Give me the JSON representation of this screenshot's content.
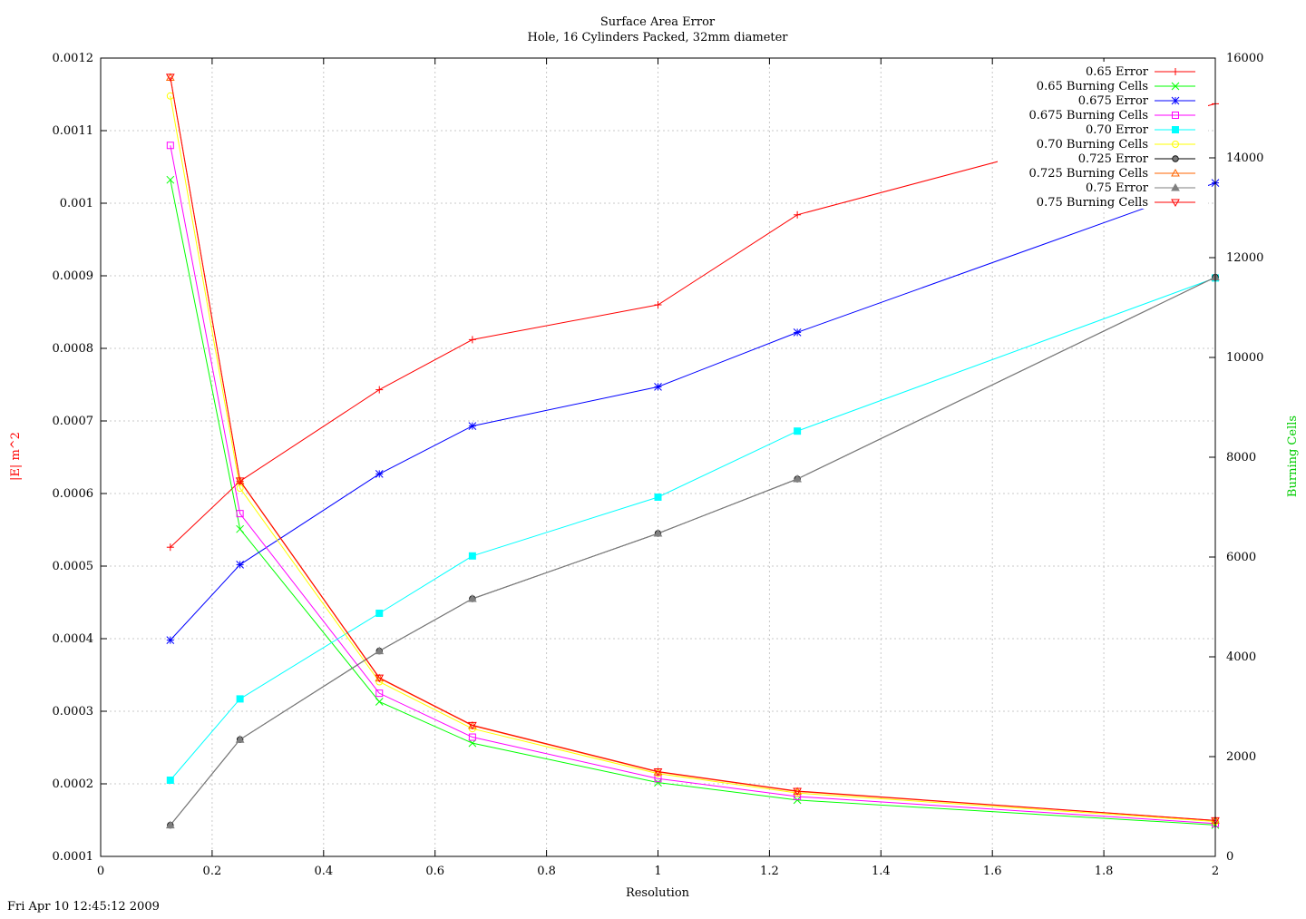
{
  "chart_data": {
    "type": "line",
    "title": "Surface Area Error",
    "subtitle": "Hole, 16 Cylinders Packed, 32mm diameter",
    "xlabel": "Resolution",
    "ylabel": "|E| m^2",
    "y2label": "Burning Cells",
    "xlim": [
      0,
      2
    ],
    "ylim": [
      0.0001,
      0.0012
    ],
    "y2lim": [
      0,
      16000
    ],
    "x_ticks": [
      "0",
      "0.2",
      "0.4",
      "0.6",
      "0.8",
      "1",
      "1.2",
      "1.4",
      "1.6",
      "1.8",
      "2"
    ],
    "y_ticks": [
      "0.0001",
      "0.0002",
      "0.0003",
      "0.0004",
      "0.0005",
      "0.0006",
      "0.0007",
      "0.0008",
      "0.0009",
      "0.001",
      "0.0011",
      "0.0012"
    ],
    "y2_ticks": [
      "0",
      "2000",
      "4000",
      "6000",
      "8000",
      "10000",
      "12000",
      "14000",
      "16000"
    ],
    "grid": true,
    "legend_position": "top-right",
    "x": [
      0.125,
      0.25,
      0.5,
      0.667,
      1,
      1.25,
      2
    ],
    "series": [
      {
        "name": "0.65 Error",
        "axis": "y",
        "color": "#ff0000",
        "marker": "plus",
        "values": [
          0.000526,
          0.000617,
          0.000743,
          0.000812,
          0.00086,
          0.000984,
          0.001137
        ]
      },
      {
        "name": "0.65 Burning Cells",
        "axis": "y2",
        "color": "#00ff00",
        "marker": "cross",
        "values": [
          13560,
          6560,
          3100,
          2270,
          1480,
          1130,
          630
        ]
      },
      {
        "name": "0.675 Error",
        "axis": "y",
        "color": "#0000ff",
        "marker": "star",
        "values": [
          0.000398,
          0.000502,
          0.000627,
          0.000693,
          0.000747,
          0.000822,
          0.001028
        ]
      },
      {
        "name": "0.675 Burning Cells",
        "axis": "y2",
        "color": "#ff00ff",
        "marker": "open-square",
        "values": [
          14250,
          6870,
          3270,
          2390,
          1560,
          1200,
          660
        ]
      },
      {
        "name": "0.70 Error",
        "axis": "y",
        "color": "#00ffff",
        "marker": "filled-square",
        "values": [
          0.000205,
          0.000317,
          0.000435,
          0.000514,
          0.000595,
          0.000686,
          0.000897
        ]
      },
      {
        "name": "0.70 Burning Cells",
        "axis": "y2",
        "color": "#ffff00",
        "marker": "open-circle",
        "values": [
          15240,
          7380,
          3500,
          2560,
          1660,
          1270,
          700
        ]
      },
      {
        "name": "0.725 Error",
        "axis": "y",
        "color": "#000000",
        "marker": "filled-circle",
        "values": [
          0.000143,
          0.000261,
          0.000383,
          0.000455,
          0.000545,
          0.00062,
          0.000898
        ]
      },
      {
        "name": "0.725 Burning Cells",
        "axis": "y2",
        "color": "#ff6600",
        "marker": "open-triangle-up",
        "values": [
          15610,
          7520,
          3570,
          2620,
          1690,
          1300,
          720
        ]
      },
      {
        "name": "0.75 Error",
        "axis": "y",
        "color": "#7f7f7f",
        "marker": "filled-triangle-up",
        "values": [
          0.000143,
          0.000261,
          0.000383,
          0.000455,
          0.000545,
          0.00062,
          0.000898
        ]
      },
      {
        "name": "0.75 Burning Cells",
        "axis": "y2",
        "color": "#ff0000",
        "marker": "open-triangle-down",
        "values": [
          15620,
          7530,
          3580,
          2630,
          1700,
          1310,
          720
        ]
      }
    ],
    "colors": {
      "ylabel": "#ff0000",
      "y2label": "#00cc00",
      "grid": "#c8c8c8"
    }
  },
  "timestamp": "Fri Apr 10 12:45:12 2009"
}
